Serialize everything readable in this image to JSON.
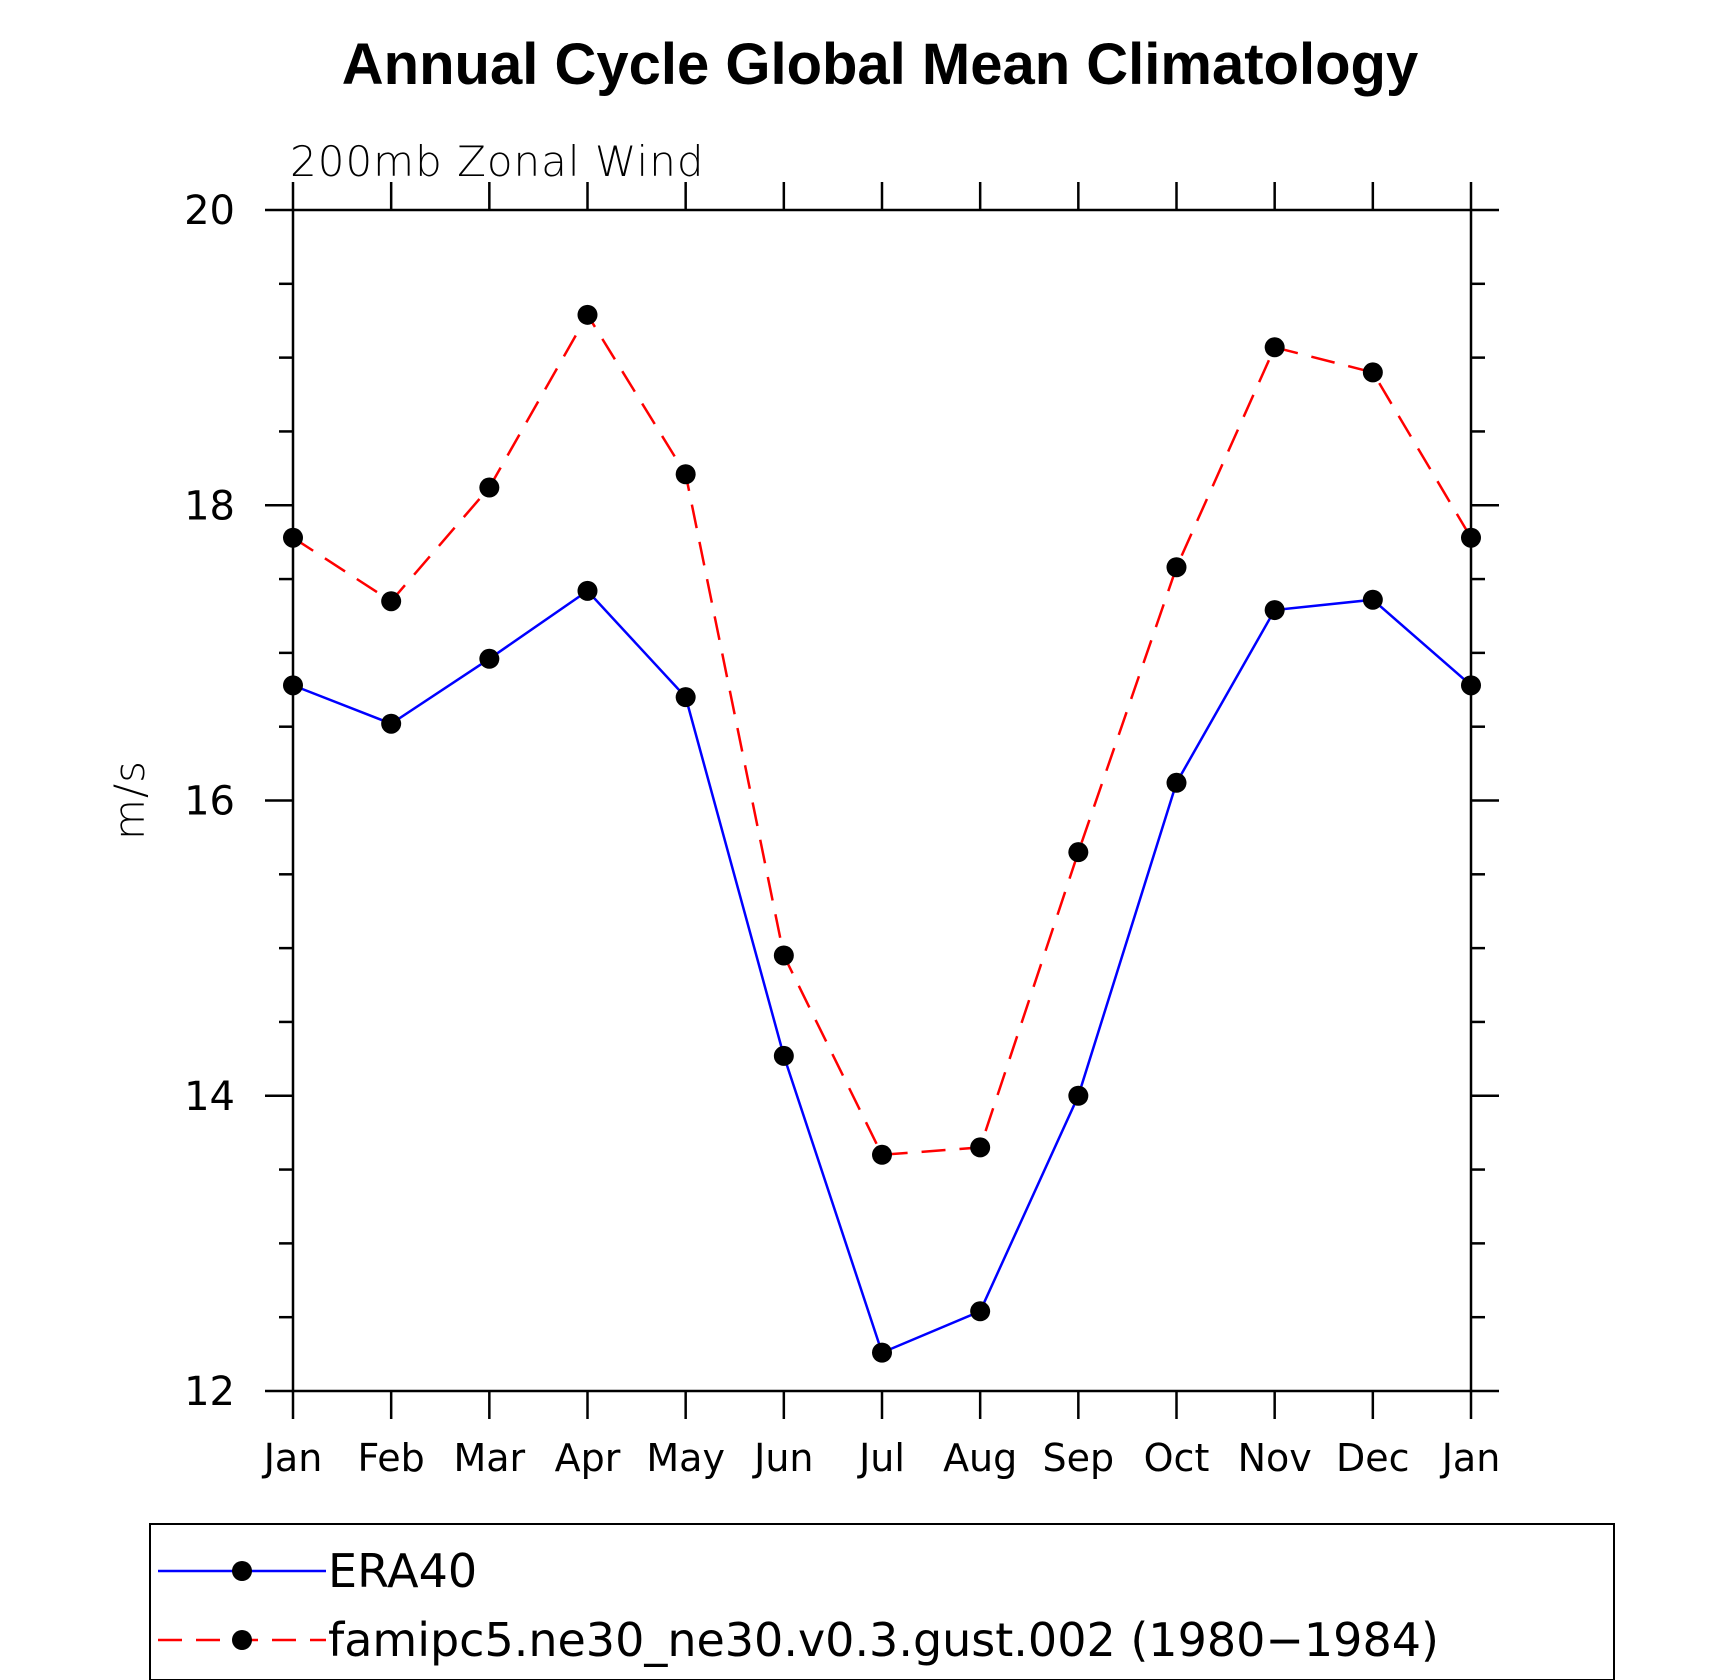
{
  "chart_data": {
    "type": "line",
    "title": "Annual Cycle Global Mean Climatology",
    "subtitle": "200mb Zonal Wind",
    "xlabel": "",
    "ylabel": "m/s",
    "categories": [
      "Jan",
      "Feb",
      "Mar",
      "Apr",
      "May",
      "Jun",
      "Jul",
      "Aug",
      "Sep",
      "Oct",
      "Nov",
      "Dec",
      "Jan"
    ],
    "ylim": [
      12,
      20
    ],
    "yticks": [
      "12",
      "14",
      "16",
      "18",
      "20"
    ],
    "grid": false,
    "legend_position": "bottom",
    "series": [
      {
        "name": "ERA40",
        "color": "#0000ff",
        "style": "solid",
        "marker": "filled-circle",
        "values": [
          16.78,
          16.52,
          16.96,
          17.42,
          16.7,
          14.27,
          12.26,
          12.54,
          14.0,
          16.12,
          17.29,
          17.36,
          16.78
        ]
      },
      {
        "name": "famipc5.ne30_ne30.v0.3.gust.002 (1980−1984)",
        "color": "#ff0000",
        "style": "dashed",
        "marker": "filled-circle",
        "values": [
          17.78,
          17.35,
          18.12,
          19.29,
          18.21,
          14.95,
          13.6,
          13.65,
          15.65,
          17.58,
          19.07,
          18.9,
          17.78
        ]
      }
    ]
  }
}
